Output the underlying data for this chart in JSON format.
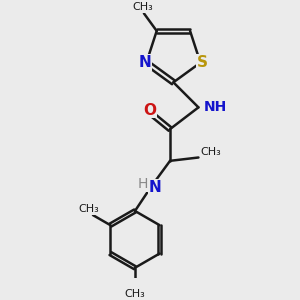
{
  "background_color": "#ebebeb",
  "bond_color": "#1a1a1a",
  "bond_width": 1.8,
  "S_color": "#b8960c",
  "N_color": "#1414cc",
  "O_color": "#cc1414",
  "figsize": [
    3.0,
    3.0
  ],
  "dpi": 100,
  "xlim": [
    -2.5,
    3.5
  ],
  "ylim": [
    -4.5,
    3.5
  ]
}
